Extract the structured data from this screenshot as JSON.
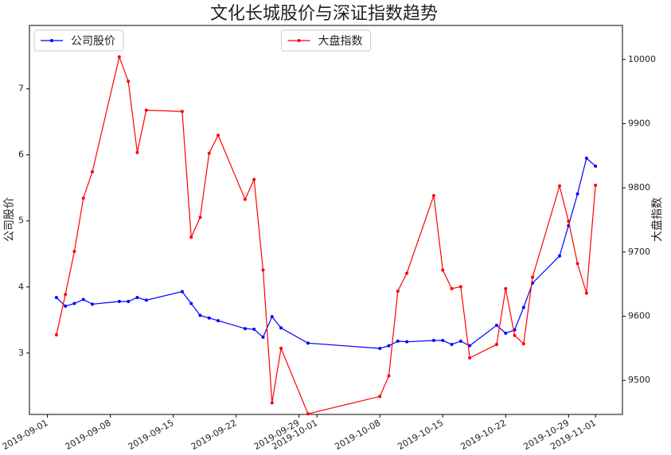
{
  "chart_data": {
    "type": "line",
    "title": "文化长城股价与深证指数趋势",
    "ylabel": "公司股价",
    "y2label": "大盘指数",
    "x": [
      "2019-09-02",
      "2019-09-03",
      "2019-09-04",
      "2019-09-05",
      "2019-09-06",
      "2019-09-09",
      "2019-09-10",
      "2019-09-11",
      "2019-09-12",
      "2019-09-16",
      "2019-09-17",
      "2019-09-18",
      "2019-09-19",
      "2019-09-20",
      "2019-09-23",
      "2019-09-24",
      "2019-09-25",
      "2019-09-26",
      "2019-09-27",
      "2019-09-30",
      "2019-10-08",
      "2019-10-09",
      "2019-10-10",
      "2019-10-11",
      "2019-10-14",
      "2019-10-15",
      "2019-10-16",
      "2019-10-17",
      "2019-10-18",
      "2019-10-21",
      "2019-10-22",
      "2019-10-23",
      "2019-10-24",
      "2019-10-25",
      "2019-10-28",
      "2019-10-29",
      "2019-10-30",
      "2019-10-31",
      "2019-11-01"
    ],
    "series": [
      {
        "name": "公司股价",
        "color": "#0000ff",
        "axis": "y",
        "legend": "upper left",
        "values": [
          3.84,
          3.71,
          3.75,
          3.81,
          3.74,
          3.78,
          3.78,
          3.84,
          3.8,
          3.93,
          3.75,
          3.57,
          3.53,
          3.49,
          3.37,
          3.36,
          3.24,
          3.55,
          3.38,
          3.15,
          3.07,
          3.11,
          3.18,
          3.17,
          3.19,
          3.19,
          3.13,
          3.18,
          3.11,
          3.42,
          3.3,
          3.35,
          3.69,
          4.06,
          4.47,
          4.93,
          5.41,
          5.95,
          5.83
        ]
      },
      {
        "name": "大盘指数",
        "color": "#ff0000",
        "axis": "y2",
        "legend": "upper center",
        "values": [
          9571,
          9634,
          9701,
          9784,
          9825,
          10004,
          9966,
          9855,
          9921,
          9919,
          9723,
          9754,
          9854,
          9882,
          9782,
          9813,
          9672,
          9465,
          9550,
          9448,
          9475,
          9507,
          9639,
          9667,
          9788,
          9672,
          9643,
          9646,
          9535,
          9556,
          9643,
          9570,
          9557,
          9661,
          9803,
          9748,
          9682,
          9636,
          9804
        ]
      }
    ],
    "xlim": [
      "2019-08-30",
      "2019-11-04"
    ],
    "xticks": [
      "2019-09-01",
      "2019-09-08",
      "2019-09-15",
      "2019-09-22",
      "2019-09-29",
      "2019-10-01",
      "2019-10-08",
      "2019-10-15",
      "2019-10-22",
      "2019-10-29",
      "2019-11-01"
    ],
    "ylim": [
      2.07,
      7.96
    ],
    "yticks": [
      3,
      4,
      5,
      6,
      7
    ],
    "y2lim": [
      9447,
      10053
    ],
    "y2ticks": [
      9500,
      9600,
      9700,
      9800,
      9900,
      10000
    ]
  }
}
